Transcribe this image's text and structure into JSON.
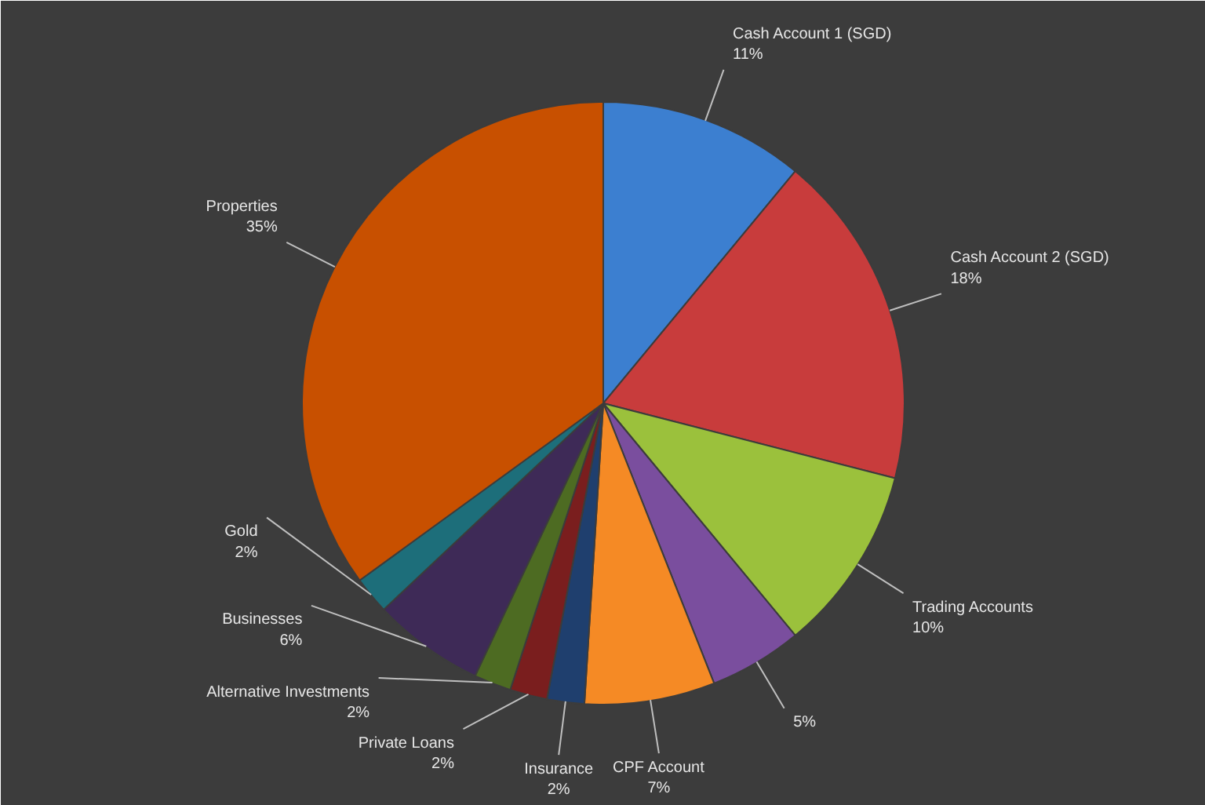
{
  "chart_data": {
    "type": "pie",
    "categories": [
      "Cash Account 1 (SGD)",
      "Cash Account 2 (SGD)",
      "Trading Accounts",
      null,
      "CPF Account",
      "Insurance",
      "Private Loans",
      "Alternative Investments",
      "Businesses",
      "Gold",
      "Properties"
    ],
    "values": [
      11,
      18,
      10,
      5,
      7,
      2,
      2,
      2,
      6,
      2,
      35
    ],
    "value_labels": [
      "11%",
      "18%",
      "10%",
      "5%",
      "7%",
      "2%",
      "2%",
      "2%",
      "6%",
      "2%",
      "35%"
    ],
    "colors": [
      "#3c7fd0",
      "#c83c3c",
      "#9bc13c",
      "#7a4e9e",
      "#f58a25",
      "#1f3f6e",
      "#7a1e1e",
      "#4d6b22",
      "#3e2a57",
      "#1d6e7a",
      "#c85000"
    ],
    "legend": false
  }
}
